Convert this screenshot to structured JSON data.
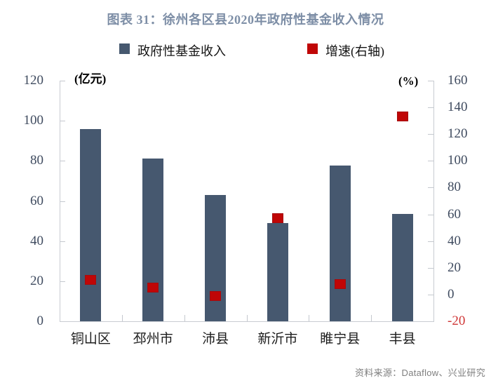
{
  "title": "图表 31：徐州各区县2020年政府性基金收入情况",
  "legend": [
    {
      "label": "政府性基金收入",
      "color": "#46586f",
      "shape": "square"
    },
    {
      "label": "增速(右轴)",
      "color": "#c00606",
      "shape": "square"
    }
  ],
  "source": "资料来源：Dataflow、兴业研究",
  "colors": {
    "bar": "#46586f",
    "marker": "#c00606",
    "title": "#7d8ea6",
    "axis_line": "#c8ccd2",
    "tick_label": "#3f4b5f",
    "negative_tick_label": "#cf3535",
    "source_text": "#7f7f7f"
  },
  "chart_data": {
    "type": "bar",
    "title": "图表 31：徐州各区县2020年政府性基金收入情况",
    "categories": [
      "铜山区",
      "邳州市",
      "沛县",
      "新沂市",
      "睢宁县",
      "丰县"
    ],
    "series": [
      {
        "name": "政府性基金收入",
        "type": "bar",
        "axis": "left",
        "unit": "亿元",
        "values": [
          96,
          81,
          63,
          49,
          77.5,
          53.5
        ]
      },
      {
        "name": "增速(右轴)",
        "type": "scatter",
        "axis": "right",
        "unit": "%",
        "values": [
          11,
          5,
          -1,
          57,
          8,
          133
        ]
      }
    ],
    "left_axis": {
      "label": "(亿元)",
      "min": 0,
      "max": 120,
      "tick_step": 20,
      "ticks": [
        0,
        20,
        40,
        60,
        80,
        100,
        120
      ]
    },
    "right_axis": {
      "label": "(%)",
      "min": -20,
      "max": 160,
      "tick_step": 20,
      "ticks": [
        -20,
        0,
        20,
        40,
        60,
        80,
        100,
        120,
        140,
        160
      ]
    },
    "grid": false,
    "legend_position": "top"
  }
}
